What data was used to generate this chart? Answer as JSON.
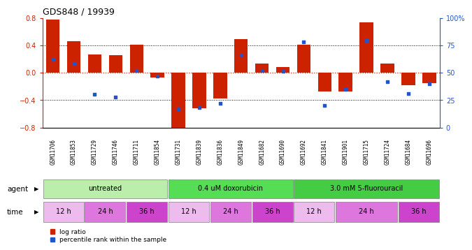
{
  "title": "GDS848 / 19939",
  "samples": [
    "GSM11706",
    "GSM11853",
    "GSM11729",
    "GSM11746",
    "GSM11711",
    "GSM11854",
    "GSM11731",
    "GSM11839",
    "GSM11836",
    "GSM11849",
    "GSM11682",
    "GSM11690",
    "GSM11692",
    "GSM11841",
    "GSM11901",
    "GSM11715",
    "GSM11724",
    "GSM11684",
    "GSM11696"
  ],
  "log_ratio": [
    0.77,
    0.46,
    0.27,
    0.25,
    0.41,
    -0.07,
    -0.83,
    -0.52,
    -0.38,
    0.49,
    0.13,
    0.08,
    0.41,
    -0.27,
    -0.28,
    0.73,
    0.13,
    -0.18,
    -0.15
  ],
  "percentile": [
    62,
    58,
    30,
    28,
    52,
    47,
    17,
    18,
    22,
    66,
    52,
    51,
    78,
    20,
    35,
    79,
    42,
    31,
    40
  ],
  "ylim_left": [
    -0.8,
    0.8
  ],
  "ylim_right": [
    0,
    100
  ],
  "yticks_left": [
    -0.8,
    -0.4,
    0.0,
    0.4,
    0.8
  ],
  "yticks_right": [
    0,
    25,
    50,
    75,
    100
  ],
  "bar_color": "#cc2200",
  "dot_color": "#2255cc",
  "bg_color": "#ffffff",
  "tick_color_left": "#cc2200",
  "tick_color_right": "#2255cc",
  "sample_bg_color": "#cccccc",
  "agents": [
    {
      "label": "untreated",
      "start": 0,
      "end": 6,
      "color": "#bbeeaa"
    },
    {
      "label": "0.4 uM doxorubicin",
      "start": 6,
      "end": 12,
      "color": "#55dd55"
    },
    {
      "label": "3.0 mM 5-fluorouracil",
      "start": 12,
      "end": 19,
      "color": "#44cc44"
    }
  ],
  "time_blocks": [
    {
      "label": "12 h",
      "start": 0,
      "end": 2,
      "color": "#eebbee"
    },
    {
      "label": "24 h",
      "start": 2,
      "end": 4,
      "color": "#dd77dd"
    },
    {
      "label": "36 h",
      "start": 4,
      "end": 6,
      "color": "#cc44cc"
    },
    {
      "label": "12 h",
      "start": 6,
      "end": 8,
      "color": "#eebbee"
    },
    {
      "label": "24 h",
      "start": 8,
      "end": 10,
      "color": "#dd77dd"
    },
    {
      "label": "36 h",
      "start": 10,
      "end": 12,
      "color": "#cc44cc"
    },
    {
      "label": "12 h",
      "start": 12,
      "end": 14,
      "color": "#eebbee"
    },
    {
      "label": "24 h",
      "start": 14,
      "end": 17,
      "color": "#dd77dd"
    },
    {
      "label": "36 h",
      "start": 17,
      "end": 19,
      "color": "#cc44cc"
    }
  ]
}
